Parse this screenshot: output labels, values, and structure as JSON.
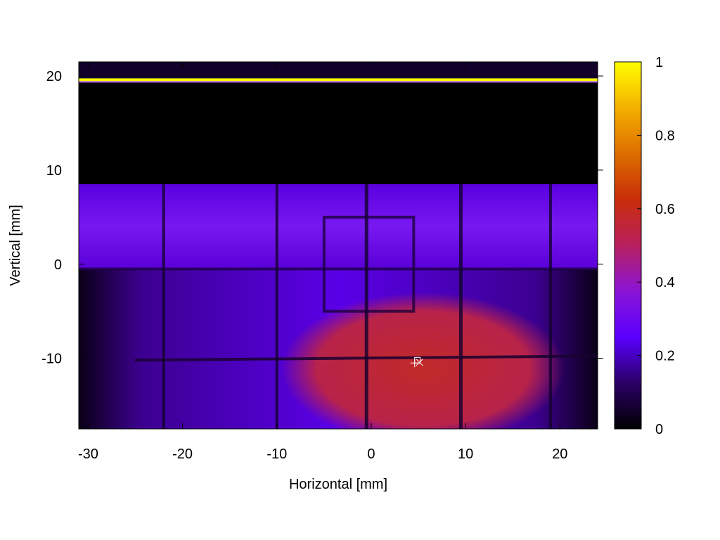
{
  "chart_data": {
    "type": "heatmap",
    "title": "",
    "xlabel": "Horizontal [mm]",
    "ylabel": "Vertical [mm]",
    "xlim": [
      -31,
      24
    ],
    "ylim": [
      -17.5,
      21.5
    ],
    "x_ticks": [
      -30,
      -20,
      -10,
      0,
      10,
      20
    ],
    "y_ticks": [
      -10,
      0,
      10,
      20
    ],
    "x_tick_labels": [
      "-30",
      "-20",
      "-10",
      "0",
      "10",
      "20"
    ],
    "y_tick_labels": [
      "-10",
      "0",
      "10",
      "20"
    ],
    "colorbar": {
      "range": [
        0,
        1
      ],
      "ticks": [
        0,
        0.2,
        0.4,
        0.6,
        0.8,
        1
      ],
      "tick_labels": [
        "0",
        "0.2",
        "0.4",
        "0.6",
        "0.8",
        "1"
      ],
      "colormap": [
        "#000000",
        "#2a0066",
        "#5a00ff",
        "#8a14d6",
        "#b8205e",
        "#c92d0a",
        "#dd6e00",
        "#f5b000",
        "#ffff00"
      ]
    },
    "features": {
      "bright_line": {
        "y": 19.6,
        "value": 1.0
      },
      "dark_band": {
        "y_range": [
          8.5,
          19.2
        ],
        "value": 0.0
      },
      "upper_band": {
        "y_range": [
          -0.5,
          8.5
        ],
        "value": 0.24
      },
      "lower_field": {
        "y_range": [
          -17.5,
          -0.5
        ],
        "value": 0.22
      },
      "red_spot": {
        "center": [
          5.5,
          -10.5
        ],
        "radius_x": 15,
        "radius_y": 7.5,
        "value": 0.43
      },
      "vertical_dark_lines": [
        -22,
        -10,
        -0.5,
        9.5,
        19
      ],
      "horizontal_dark_line": {
        "y": -10.2,
        "value": 0.05
      },
      "dark_rectangle_outline": {
        "x_range": [
          -5,
          4.5
        ],
        "y_range": [
          -5,
          5
        ]
      },
      "marker": {
        "x": 4.6,
        "y": -10.5,
        "symbols": [
          "+",
          "x",
          "square"
        ]
      }
    }
  }
}
